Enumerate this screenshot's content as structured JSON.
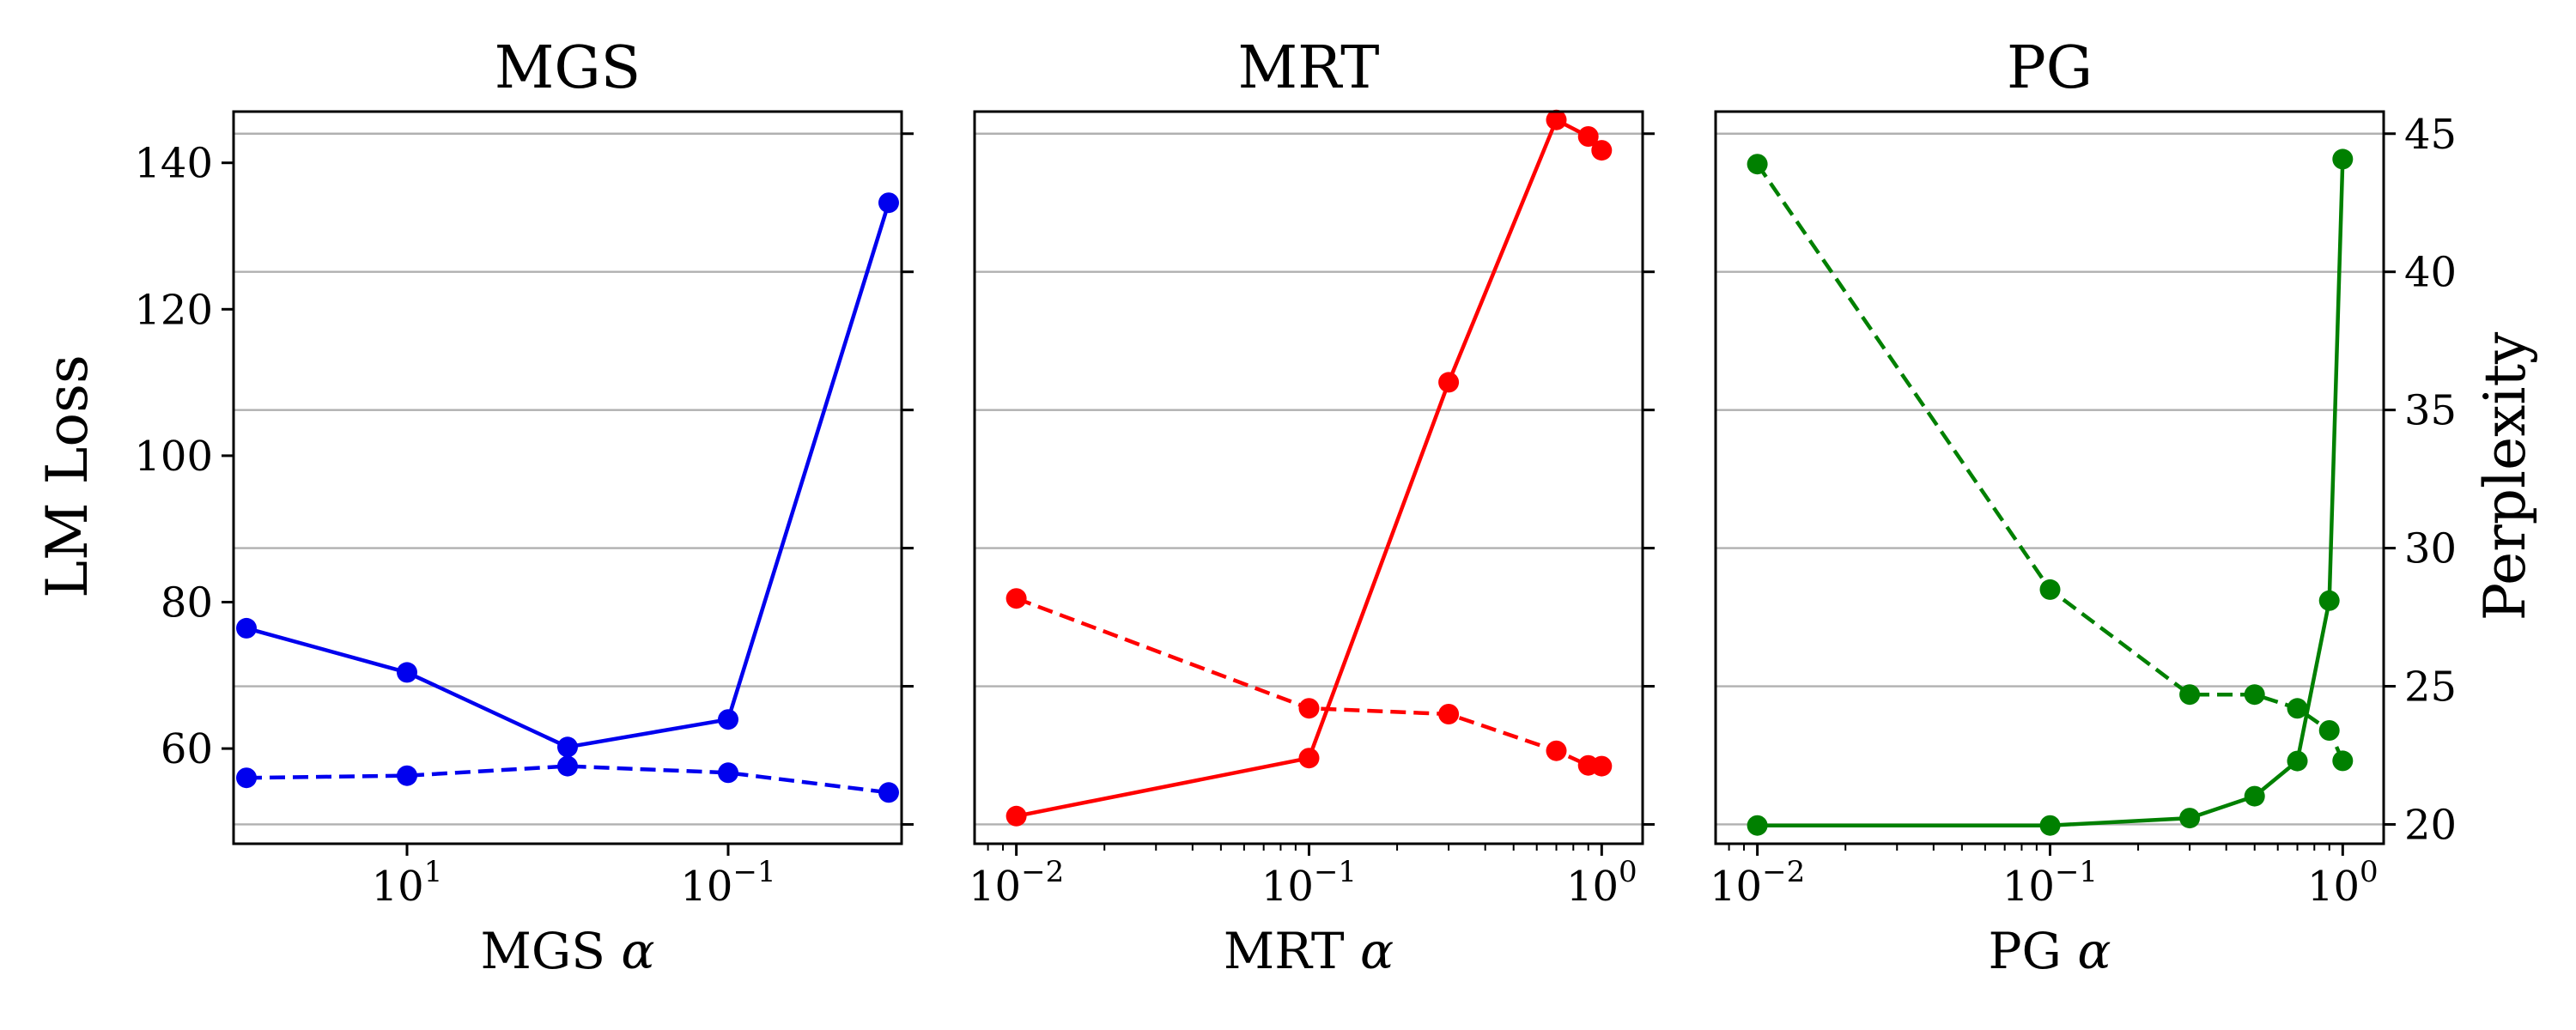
{
  "chart_data": [
    {
      "type": "line",
      "title": "MGS",
      "xlabel": "MGS",
      "xlabel_symbol": "α",
      "ylabel": "LM Loss",
      "color": "#0000ee",
      "xscale": "categorical",
      "x_tick_labels": [
        {
          "base": "10",
          "exp": "1",
          "pos": 1
        },
        {
          "base": "10",
          "exp": "−1",
          "pos": 3
        }
      ],
      "y_tick_labels": [
        "60",
        "80",
        "100",
        "120",
        "140"
      ],
      "left_ylim": [
        47,
        147
      ],
      "right_ylim": [
        19.3,
        45.8
      ],
      "series": [
        {
          "name": "LM Loss",
          "axis": "left",
          "style": "dashed",
          "x": [
            0,
            1,
            2,
            3,
            4
          ],
          "values": [
            56,
            56.3,
            57.6,
            56.7,
            54
          ]
        },
        {
          "name": "Perplexity",
          "axis": "right",
          "style": "solid",
          "x": [
            0,
            1,
            2,
            3,
            4
          ],
          "values": [
            27.1,
            25.5,
            22.8,
            23.8,
            42.5
          ]
        }
      ]
    },
    {
      "type": "line",
      "title": "MRT",
      "xlabel": "MRT",
      "xlabel_symbol": "α",
      "color": "#ff0000",
      "xscale": "log",
      "x_tick_labels": [
        {
          "base": "10",
          "exp": "−2",
          "value": 0.01
        },
        {
          "base": "10",
          "exp": "−1",
          "value": 0.1
        },
        {
          "base": "10",
          "exp": "0",
          "value": 1
        }
      ],
      "xlim": [
        0.0072,
        1.38
      ],
      "left_ylim": [
        47,
        147
      ],
      "right_ylim": [
        19.3,
        45.8
      ],
      "series": [
        {
          "name": "LM Loss",
          "axis": "left",
          "style": "dashed",
          "x": [
            0.01,
            0.1,
            0.3,
            0.7,
            0.9,
            1.0
          ],
          "values": [
            80.5,
            65.5,
            64.7,
            59.7,
            57.7,
            57.6
          ]
        },
        {
          "name": "Perplexity",
          "axis": "right",
          "style": "solid",
          "x": [
            0.01,
            0.1,
            0.3,
            0.7,
            0.9,
            1.0
          ],
          "values": [
            20.3,
            22.4,
            36.0,
            45.5,
            44.9,
            44.4
          ]
        }
      ]
    },
    {
      "type": "line",
      "title": "PG",
      "xlabel": "PG",
      "xlabel_symbol": "α",
      "color": "#008000",
      "xscale": "log",
      "x_tick_labels": [
        {
          "base": "10",
          "exp": "−2",
          "value": 0.01
        },
        {
          "base": "10",
          "exp": "−1",
          "value": 0.1
        },
        {
          "base": "10",
          "exp": "0",
          "value": 1
        }
      ],
      "right_ylabel": "Perplexity",
      "right_tick_labels": [
        "20",
        "25",
        "30",
        "35",
        "40",
        "45"
      ],
      "xlim": [
        0.0072,
        1.38
      ],
      "left_ylim": [
        47,
        147
      ],
      "right_ylim": [
        19.3,
        45.8
      ],
      "series": [
        {
          "name": "LM Loss",
          "axis": "left",
          "style": "solid",
          "x": [
            0.01,
            0.1,
            0.3,
            0.5,
            0.7,
            0.9,
            1.0
          ],
          "values": [
            49.5,
            49.5,
            50.5,
            53.5,
            58.3,
            80.2,
            140.5
          ]
        },
        {
          "name": "Perplexity",
          "axis": "right",
          "style": "dashed",
          "x": [
            0.01,
            0.1,
            0.3,
            0.5,
            0.7,
            0.9,
            1.0
          ],
          "values": [
            43.9,
            28.5,
            24.7,
            24.7,
            24.2,
            23.4,
            22.3
          ]
        }
      ]
    }
  ]
}
